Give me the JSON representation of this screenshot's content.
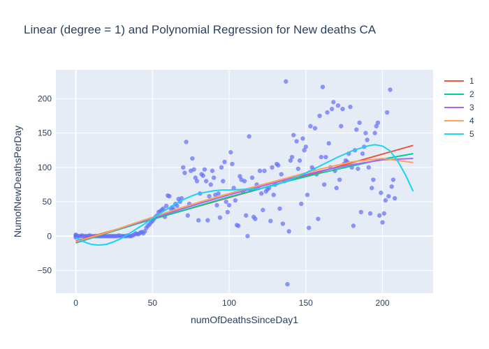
{
  "chart_data": {
    "type": "scatter",
    "title": "Linear (degree = 1) and Polynomial Regression for New deaths CA",
    "xlabel": "numOfDeathsSinceDay1",
    "ylabel": "NumofNewDeathsPerDay",
    "xlim": [
      -13,
      233
    ],
    "ylim": [
      -83,
      242
    ],
    "x_ticks": [
      0,
      50,
      100,
      150,
      200
    ],
    "y_ticks": [
      -50,
      0,
      50,
      100,
      150,
      200
    ],
    "grid": true,
    "legend_position": "top-right",
    "background_color": "#e5ecf6",
    "scatter": {
      "color": "#636efa",
      "points": [
        [
          0,
          0
        ],
        [
          0,
          2
        ],
        [
          0,
          -2
        ],
        [
          0,
          1
        ],
        [
          1,
          0
        ],
        [
          2,
          0
        ],
        [
          3,
          0
        ],
        [
          4,
          1
        ],
        [
          5,
          0
        ],
        [
          6,
          0
        ],
        [
          7,
          0
        ],
        [
          8,
          0
        ],
        [
          9,
          1
        ],
        [
          10,
          0
        ],
        [
          11,
          0
        ],
        [
          12,
          0
        ],
        [
          13,
          0
        ],
        [
          14,
          0
        ],
        [
          15,
          0
        ],
        [
          16,
          0
        ],
        [
          17,
          0
        ],
        [
          18,
          0
        ],
        [
          19,
          0
        ],
        [
          20,
          0
        ],
        [
          21,
          0
        ],
        [
          22,
          0
        ],
        [
          23,
          0
        ],
        [
          24,
          0
        ],
        [
          25,
          0
        ],
        [
          26,
          0
        ],
        [
          27,
          0
        ],
        [
          28,
          1
        ],
        [
          29,
          0
        ],
        [
          30,
          0
        ],
        [
          31,
          0
        ],
        [
          32,
          0
        ],
        [
          33,
          0
        ],
        [
          34,
          1
        ],
        [
          35,
          0
        ],
        [
          36,
          0
        ],
        [
          37,
          1
        ],
        [
          38,
          2
        ],
        [
          39,
          4
        ],
        [
          40,
          3
        ],
        [
          41,
          3
        ],
        [
          42,
          5
        ],
        [
          43,
          6
        ],
        [
          44,
          4
        ],
        [
          45,
          7
        ],
        [
          46,
          12
        ],
        [
          47,
          15
        ],
        [
          48,
          17
        ],
        [
          49,
          20
        ],
        [
          50,
          22
        ],
        [
          51,
          25
        ],
        [
          52,
          28
        ],
        [
          53,
          30
        ],
        [
          54,
          35
        ],
        [
          55,
          36
        ],
        [
          56,
          38
        ],
        [
          57,
          40
        ],
        [
          58,
          28
        ],
        [
          59,
          44
        ],
        [
          60,
          59
        ],
        [
          61,
          58
        ],
        [
          62,
          40
        ],
        [
          63,
          42
        ],
        [
          64,
          38
        ],
        [
          65,
          47
        ],
        [
          66,
          44
        ],
        [
          67,
          54
        ],
        [
          68,
          50
        ],
        [
          69,
          55
        ],
        [
          70,
          100
        ],
        [
          71,
          92
        ],
        [
          72,
          137
        ],
        [
          73,
          30
        ],
        [
          74,
          47
        ],
        [
          75,
          95
        ],
        [
          76,
          113
        ],
        [
          77,
          97
        ],
        [
          78,
          85
        ],
        [
          79,
          80
        ],
        [
          80,
          23
        ],
        [
          81,
          62
        ],
        [
          82,
          90
        ],
        [
          83,
          88
        ],
        [
          84,
          97
        ],
        [
          85,
          80
        ],
        [
          86,
          23
        ],
        [
          87,
          58
        ],
        [
          88,
          75
        ],
        [
          89,
          95
        ],
        [
          90,
          85
        ],
        [
          91,
          60
        ],
        [
          92,
          45
        ],
        [
          93,
          62
        ],
        [
          94,
          27
        ],
        [
          95,
          100
        ],
        [
          96,
          80
        ],
        [
          97,
          108
        ],
        [
          98,
          50
        ],
        [
          99,
          35
        ],
        [
          100,
          45
        ],
        [
          101,
          122
        ],
        [
          102,
          105
        ],
        [
          103,
          70
        ],
        [
          104,
          52
        ],
        [
          105,
          16
        ],
        [
          106,
          15
        ],
        [
          107,
          87
        ],
        [
          108,
          82
        ],
        [
          109,
          65
        ],
        [
          110,
          80
        ],
        [
          111,
          30
        ],
        [
          112,
          0
        ],
        [
          113,
          145
        ],
        [
          114,
          67
        ],
        [
          115,
          85
        ],
        [
          116,
          28
        ],
        [
          117,
          25
        ],
        [
          118,
          75
        ],
        [
          119,
          70
        ],
        [
          120,
          95
        ],
        [
          121,
          62
        ],
        [
          122,
          38
        ],
        [
          123,
          95
        ],
        [
          124,
          65
        ],
        [
          125,
          68
        ],
        [
          126,
          70
        ],
        [
          127,
          22
        ],
        [
          128,
          100
        ],
        [
          129,
          60
        ],
        [
          130,
          75
        ],
        [
          131,
          105
        ],
        [
          132,
          103
        ],
        [
          133,
          40
        ],
        [
          134,
          90
        ],
        [
          135,
          18
        ],
        [
          136,
          80
        ],
        [
          137,
          225
        ],
        [
          138,
          -70
        ],
        [
          139,
          7
        ],
        [
          140,
          110
        ],
        [
          141,
          115
        ],
        [
          142,
          147
        ],
        [
          143,
          85
        ],
        [
          144,
          138
        ],
        [
          145,
          98
        ],
        [
          146,
          110
        ],
        [
          147,
          47
        ],
        [
          148,
          142
        ],
        [
          149,
          125
        ],
        [
          150,
          130
        ],
        [
          151,
          60
        ],
        [
          152,
          12
        ],
        [
          153,
          160
        ],
        [
          154,
          100
        ],
        [
          155,
          97
        ],
        [
          156,
          157
        ],
        [
          157,
          90
        ],
        [
          158,
          25
        ],
        [
          159,
          175
        ],
        [
          160,
          115
        ],
        [
          161,
          217
        ],
        [
          162,
          75
        ],
        [
          163,
          115
        ],
        [
          164,
          180
        ],
        [
          165,
          135
        ],
        [
          166,
          100
        ],
        [
          167,
          185
        ],
        [
          168,
          195
        ],
        [
          169,
          95
        ],
        [
          170,
          70
        ],
        [
          171,
          190
        ],
        [
          172,
          82
        ],
        [
          173,
          160
        ],
        [
          174,
          185
        ],
        [
          175,
          105
        ],
        [
          176,
          110
        ],
        [
          177,
          108
        ],
        [
          178,
          120
        ],
        [
          179,
          188
        ],
        [
          180,
          100
        ],
        [
          181,
          15
        ],
        [
          182,
          125
        ],
        [
          183,
          155
        ],
        [
          184,
          98
        ],
        [
          185,
          165
        ],
        [
          186,
          35
        ],
        [
          187,
          120
        ],
        [
          188,
          130
        ],
        [
          189,
          150
        ],
        [
          190,
          140
        ],
        [
          191,
          100
        ],
        [
          192,
          33
        ],
        [
          193,
          70
        ],
        [
          194,
          82
        ],
        [
          195,
          150
        ],
        [
          196,
          160
        ],
        [
          197,
          165
        ],
        [
          198,
          30
        ],
        [
          199,
          63
        ],
        [
          200,
          20
        ],
        [
          201,
          33
        ],
        [
          202,
          52
        ],
        [
          203,
          180
        ],
        [
          204,
          58
        ],
        [
          205,
          213
        ],
        [
          206,
          72
        ],
        [
          207,
          82
        ],
        [
          208,
          55
        ]
      ]
    },
    "series": [
      {
        "name": "1",
        "color": "#EF553B",
        "x": [
          0,
          220
        ],
        "y": [
          -7,
          132
        ]
      },
      {
        "name": "2",
        "color": "#00cc96",
        "x": [
          0,
          20,
          40,
          60,
          80,
          100,
          120,
          140,
          160,
          180,
          200,
          220
        ],
        "y": [
          -10,
          4,
          18,
          31,
          44,
          57,
          69,
          81,
          92,
          102,
          112,
          120
        ]
      },
      {
        "name": "3",
        "color": "#ab63fa",
        "x": [
          0,
          20,
          40,
          60,
          80,
          100,
          120,
          140,
          160,
          180,
          200,
          220
        ],
        "y": [
          -9,
          5,
          19,
          33,
          47,
          60,
          72,
          84,
          95,
          104,
          111,
          113
        ]
      },
      {
        "name": "4",
        "color": "#FFA15A",
        "x": [
          0,
          20,
          40,
          60,
          80,
          100,
          120,
          140,
          160,
          180,
          200,
          220
        ],
        "y": [
          -8,
          5,
          20,
          35,
          49,
          62,
          74,
          86,
          98,
          108,
          113,
          107
        ]
      },
      {
        "name": "5",
        "color": "#19d3f3",
        "x": [
          0,
          5,
          10,
          15,
          20,
          25,
          30,
          35,
          40,
          45,
          50,
          55,
          60,
          65,
          70,
          75,
          80,
          85,
          90,
          95,
          100,
          110,
          120,
          130,
          140,
          150,
          160,
          170,
          180,
          190,
          195,
          200,
          205,
          210,
          215,
          220
        ],
        "y": [
          -2,
          -8,
          -12,
          -13,
          -12,
          -8,
          -3,
          4,
          11,
          18,
          26,
          33,
          40,
          47,
          53,
          58,
          62,
          64,
          66,
          67,
          67,
          68,
          69,
          74,
          82,
          92,
          103,
          114,
          124,
          131,
          133,
          131,
          124,
          109,
          89,
          65
        ]
      }
    ]
  }
}
